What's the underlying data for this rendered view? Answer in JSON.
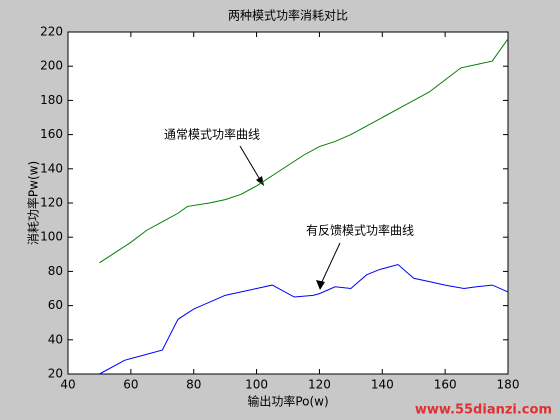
{
  "chart_data": {
    "type": "line",
    "title": "两种模式功率消耗对比",
    "xlabel": "输出功率Po(w)",
    "ylabel": "消耗功率Pw(w)",
    "xlim": [
      40,
      180
    ],
    "xticks": [
      40,
      60,
      80,
      100,
      120,
      140,
      160,
      180
    ],
    "ylim": [
      20,
      220
    ],
    "yticks": [
      20,
      40,
      60,
      80,
      100,
      120,
      140,
      160,
      180,
      200,
      220
    ],
    "grid": false,
    "series": [
      {
        "color": "#008000",
        "x": [
          50,
          55,
          60,
          65,
          70,
          75,
          78,
          85,
          90,
          95,
          100,
          105,
          110,
          115,
          120,
          125,
          130,
          135,
          140,
          145,
          150,
          155,
          160,
          165,
          170,
          175,
          180
        ],
        "values": [
          85,
          91,
          97,
          104,
          109,
          114,
          118,
          120,
          122,
          125,
          130,
          136,
          142,
          148,
          153,
          156,
          160,
          165,
          170,
          175,
          180,
          185,
          192,
          199,
          201,
          203,
          216
        ]
      },
      {
        "color": "#0000ff",
        "x": [
          50,
          58,
          62,
          70,
          75,
          80,
          90,
          100,
          105,
          112,
          118,
          120,
          125,
          130,
          135,
          139,
          145,
          150,
          155,
          160,
          166,
          170,
          175,
          180
        ],
        "values": [
          20,
          28,
          30,
          34,
          52,
          58,
          66,
          70,
          72,
          65,
          66,
          67,
          71,
          70,
          78,
          81,
          84,
          76,
          74,
          72,
          70,
          71,
          72,
          68
        ]
      }
    ],
    "annotations": [
      "通常模式功率曲线",
      "有反馈模式功率曲线"
    ],
    "watermark": "www.55dianzi.com"
  }
}
